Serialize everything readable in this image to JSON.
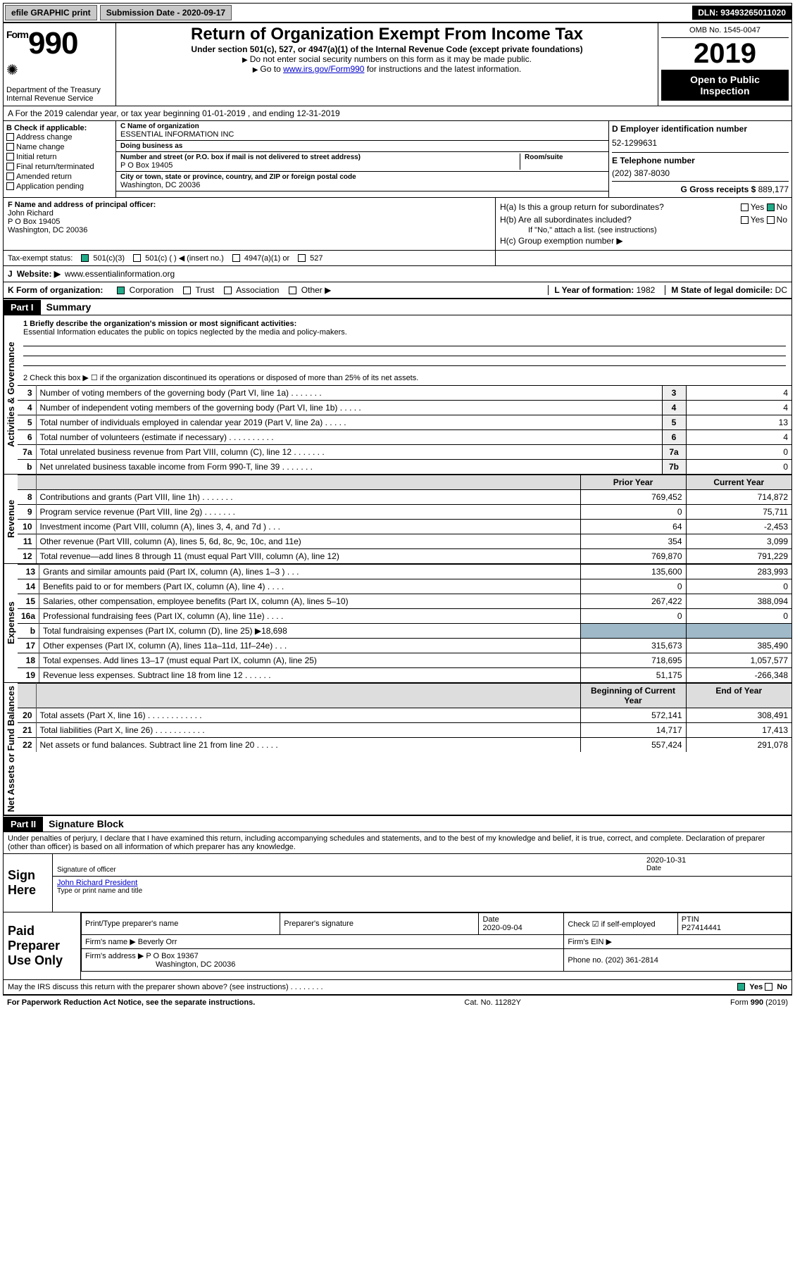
{
  "topbar": {
    "efile": "efile GRAPHIC print",
    "sub_label": "Submission Date - ",
    "sub_date": "2020-09-17",
    "dln_label": "DLN: ",
    "dln": "93493265011020"
  },
  "header": {
    "form_word": "Form",
    "form_no": "990",
    "dept": "Department of the Treasury\nInternal Revenue Service",
    "title": "Return of Organization Exempt From Income Tax",
    "subtitle": "Under section 501(c), 527, or 4947(a)(1) of the Internal Revenue Code (except private foundations)",
    "instr1": "Do not enter social security numbers on this form as it may be made public.",
    "instr2_pre": "Go to ",
    "instr2_link": "www.irs.gov/Form990",
    "instr2_post": " for instructions and the latest information.",
    "omb": "OMB No. 1545-0047",
    "year": "2019",
    "open": "Open to Public Inspection"
  },
  "rowA": {
    "text": "A For the 2019 calendar year, or tax year beginning 01-01-2019    , and ending 12-31-2019"
  },
  "boxB": {
    "title": "B Check if applicable:",
    "items": [
      "Address change",
      "Name change",
      "Initial return",
      "Final return/terminated",
      "Amended return",
      "Application pending"
    ]
  },
  "boxC": {
    "c_label": "C Name of organization",
    "org": "ESSENTIAL INFORMATION INC",
    "dba_label": "Doing business as",
    "addr_label": "Number and street (or P.O. box if mail is not delivered to street address)",
    "room_label": "Room/suite",
    "addr": "P O Box 19405",
    "city_label": "City or town, state or province, country, and ZIP or foreign postal code",
    "city": "Washington, DC  20036"
  },
  "boxD": {
    "label": "D Employer identification number",
    "val": "52-1299631"
  },
  "boxE": {
    "label": "E Telephone number",
    "val": "(202) 387-8030"
  },
  "boxG": {
    "label": "G Gross receipts $ ",
    "val": "889,177"
  },
  "boxF": {
    "label": "F  Name and address of principal officer:",
    "name": "John Richard",
    "addr1": "P O Box 19405",
    "addr2": "Washington, DC  20036"
  },
  "boxH": {
    "a_label": "H(a)  Is this a group return for subordinates?",
    "b_label": "H(b)  Are all subordinates included?",
    "b_note": "If \"No,\" attach a list. (see instructions)",
    "c_label": "H(c)  Group exemption number ▶",
    "yes": "Yes",
    "no": "No",
    "a_yes": false,
    "a_no": true
  },
  "taxExempt": {
    "label": "Tax-exempt status:",
    "c3": "501(c)(3)",
    "c": "501(c) (   ) ◀ (insert no.)",
    "a1": "4947(a)(1) or",
    "s527": "527",
    "checked": "c3"
  },
  "boxJ": {
    "label": "J",
    "text": "Website: ▶",
    "val": "www.essentialinformation.org"
  },
  "boxK": {
    "label": "K Form of organization:",
    "opts": [
      "Corporation",
      "Trust",
      "Association",
      "Other ▶"
    ],
    "checked": 0
  },
  "boxL": {
    "label": "L Year of formation: ",
    "val": "1982"
  },
  "boxM": {
    "label": "M State of legal domicile: ",
    "val": "DC"
  },
  "part1": {
    "hdr": "Part I",
    "title": "Summary",
    "q1_label": "1  Briefly describe the organization's mission or most significant activities:",
    "q1_text": "Essential Information educates the public on topics neglected by the media and policy-makers.",
    "q2": "2    Check this box ▶ ☐  if the organization discontinued its operations or disposed of more than 25% of its net assets.",
    "vlabel_gov": "Activities & Governance",
    "vlabel_rev": "Revenue",
    "vlabel_exp": "Expenses",
    "vlabel_net": "Net Assets or Fund Balances",
    "rows_gov": [
      {
        "n": "3",
        "t": "Number of voting members of the governing body (Part VI, line 1a)   .    .    .    .    .    .    .",
        "rn": "3",
        "v": "4"
      },
      {
        "n": "4",
        "t": "Number of independent voting members of the governing body (Part VI, line 1b)   .    .    .    .    .",
        "rn": "4",
        "v": "4"
      },
      {
        "n": "5",
        "t": "Total number of individuals employed in calendar year 2019 (Part V, line 2a)   .    .    .    .    .",
        "rn": "5",
        "v": "13"
      },
      {
        "n": "6",
        "t": "Total number of volunteers (estimate if necessary)   .    .    .    .    .    .    .    .    .    .",
        "rn": "6",
        "v": "4"
      },
      {
        "n": "7a",
        "t": "Total unrelated business revenue from Part VIII, column (C), line 12   .    .    .    .    .    .    .",
        "rn": "7a",
        "v": "0"
      },
      {
        "n": "b",
        "t": "Net unrelated business taxable income from Form 990-T, line 39   .    .    .    .    .    .    .",
        "rn": "7b",
        "v": "0"
      }
    ],
    "col_prior": "Prior Year",
    "col_curr": "Current Year",
    "rows_rev": [
      {
        "n": "8",
        "t": "Contributions and grants (Part VIII, line 1h)   .    .    .    .    .    .    .",
        "p": "769,452",
        "c": "714,872"
      },
      {
        "n": "9",
        "t": "Program service revenue (Part VIII, line 2g)   .    .    .    .    .    .    .",
        "p": "0",
        "c": "75,711"
      },
      {
        "n": "10",
        "t": "Investment income (Part VIII, column (A), lines 3, 4, and 7d )   .    .    .",
        "p": "64",
        "c": "-2,453"
      },
      {
        "n": "11",
        "t": "Other revenue (Part VIII, column (A), lines 5, 6d, 8c, 9c, 10c, and 11e)",
        "p": "354",
        "c": "3,099"
      },
      {
        "n": "12",
        "t": "Total revenue—add lines 8 through 11 (must equal Part VIII, column (A), line 12)",
        "p": "769,870",
        "c": "791,229"
      }
    ],
    "rows_exp": [
      {
        "n": "13",
        "t": "Grants and similar amounts paid (Part IX, column (A), lines 1–3 )   .    .    .",
        "p": "135,600",
        "c": "283,993"
      },
      {
        "n": "14",
        "t": "Benefits paid to or for members (Part IX, column (A), line 4)   .    .    .    .",
        "p": "0",
        "c": "0"
      },
      {
        "n": "15",
        "t": "Salaries, other compensation, employee benefits (Part IX, column (A), lines 5–10)",
        "p": "267,422",
        "c": "388,094"
      },
      {
        "n": "16a",
        "t": "Professional fundraising fees (Part IX, column (A), line 11e)   .    .    .    .",
        "p": "0",
        "c": "0"
      },
      {
        "n": "b",
        "t": "Total fundraising expenses (Part IX, column (D), line 25) ▶18,698",
        "p": "",
        "c": "",
        "grey": true
      },
      {
        "n": "17",
        "t": "Other expenses (Part IX, column (A), lines 11a–11d, 11f–24e)   .    .    .",
        "p": "315,673",
        "c": "385,490"
      },
      {
        "n": "18",
        "t": "Total expenses. Add lines 13–17 (must equal Part IX, column (A), line 25)",
        "p": "718,695",
        "c": "1,057,577"
      },
      {
        "n": "19",
        "t": "Revenue less expenses. Subtract line 18 from line 12   .    .    .    .    .    .",
        "p": "51,175",
        "c": "-266,348"
      }
    ],
    "col_begin": "Beginning of Current Year",
    "col_end": "End of Year",
    "rows_net": [
      {
        "n": "20",
        "t": "Total assets (Part X, line 16)   .    .    .    .    .    .    .    .    .    .    .    .",
        "p": "572,141",
        "c": "308,491"
      },
      {
        "n": "21",
        "t": "Total liabilities (Part X, line 26)   .    .    .    .    .    .    .    .    .    .    .",
        "p": "14,717",
        "c": "17,413"
      },
      {
        "n": "22",
        "t": "Net assets or fund balances. Subtract line 21 from line 20   .    .    .    .    .",
        "p": "557,424",
        "c": "291,078"
      }
    ]
  },
  "part2": {
    "hdr": "Part II",
    "title": "Signature Block",
    "perjury": "Under penalties of perjury, I declare that I have examined this return, including accompanying schedules and statements, and to the best of my knowledge and belief, it is true, correct, and complete. Declaration of preparer (other than officer) is based on all information of which preparer has any knowledge.",
    "sign_here": "Sign Here",
    "sig_officer": "Signature of officer",
    "sig_date": "2020-10-31",
    "date_lab": "Date",
    "officer_name": "John Richard  President",
    "officer_lab": "Type or print name and title",
    "paid": "Paid Preparer Use Only",
    "p_name_lab": "Print/Type preparer's name",
    "p_sig_lab": "Preparer's signature",
    "p_date_lab": "Date",
    "p_date": "2020-09-04",
    "p_check_lab": "Check ☑ if self-employed",
    "ptin_lab": "PTIN",
    "ptin": "P27414441",
    "firm_name_lab": "Firm's name    ▶ ",
    "firm_name": "Beverly Orr",
    "firm_ein_lab": "Firm's EIN ▶",
    "firm_addr_lab": "Firm's address ▶ ",
    "firm_addr1": "P O Box 19367",
    "firm_addr2": "Washington, DC  20036",
    "phone_lab": "Phone no. ",
    "phone": "(202) 361-2814",
    "discuss": "May the IRS discuss this return with the preparer shown above? (see instructions)   .    .    .    .    .    .    .    .",
    "discuss_yes": true
  },
  "footer": {
    "left": "For Paperwork Reduction Act Notice, see the separate instructions.",
    "mid": "Cat. No. 11282Y",
    "right": "Form 990 (2019)"
  },
  "colors": {
    "link": "#0000cc",
    "grey_cell": "#9fb9c9",
    "button_bg": "#c8c8c8"
  }
}
